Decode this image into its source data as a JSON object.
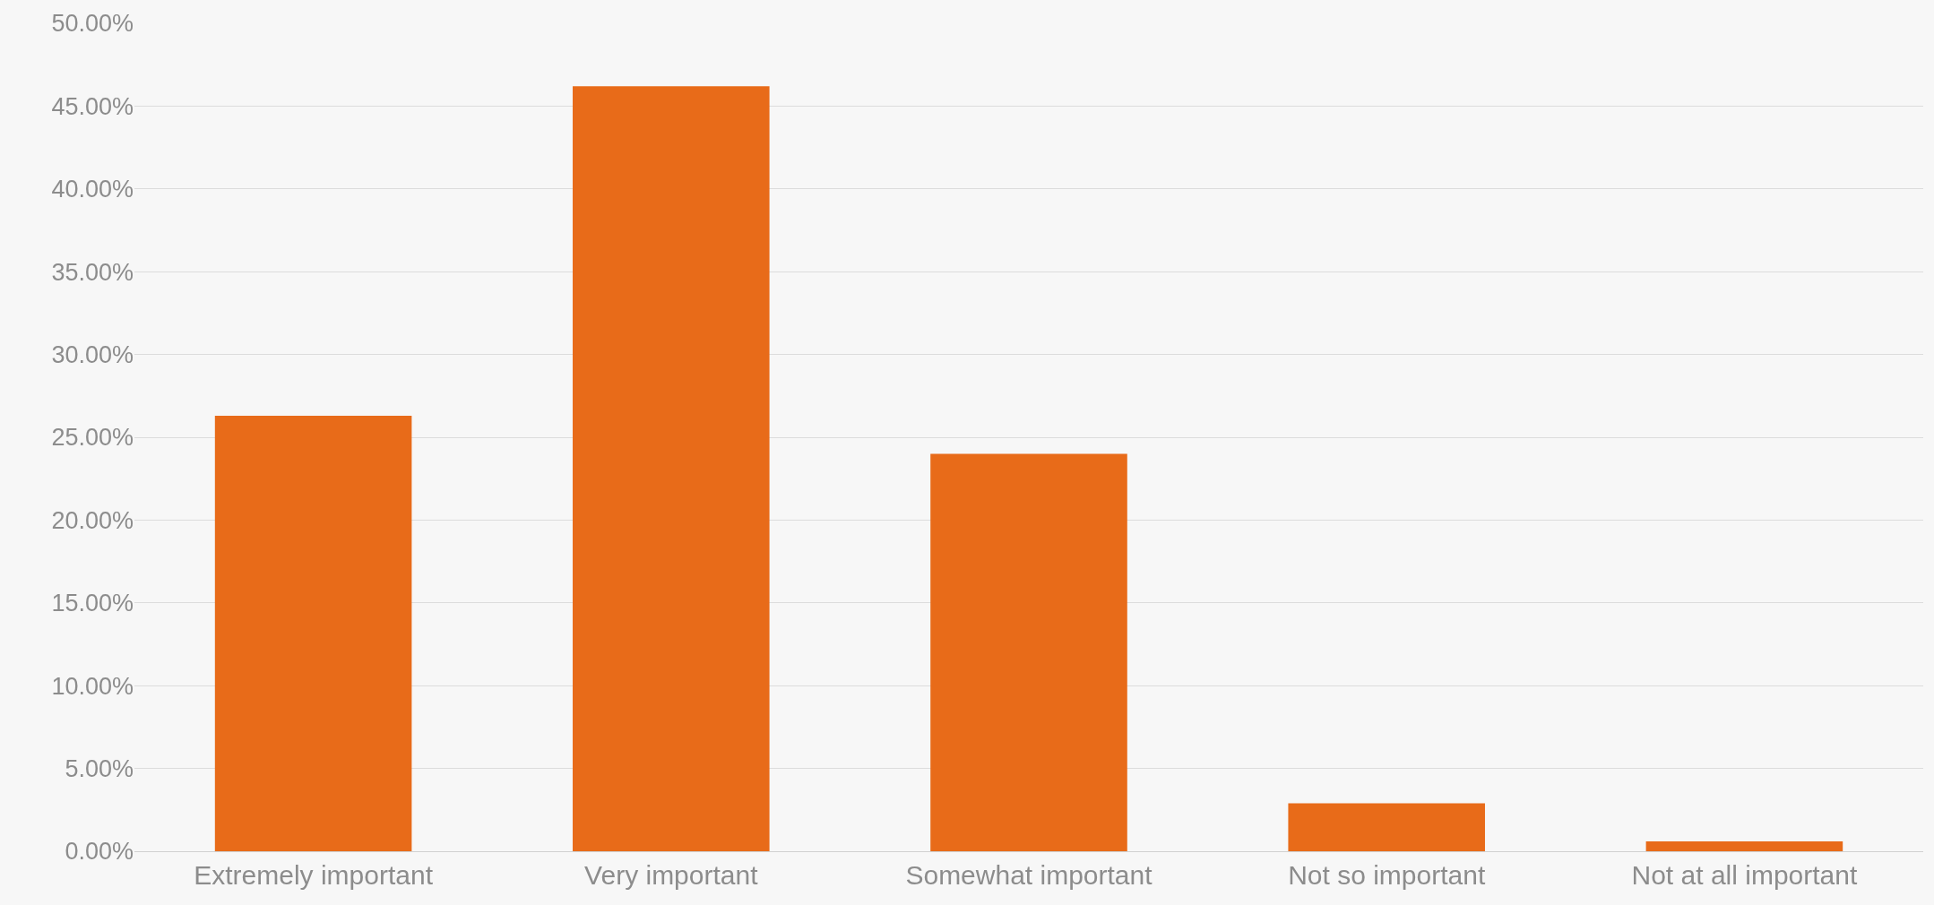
{
  "chart_data": {
    "type": "bar",
    "categories": [
      "Extremely important",
      "Very important",
      "Somewhat important",
      "Not so important",
      "Not at all important"
    ],
    "values": [
      26.3,
      46.2,
      24.0,
      2.9,
      0.6
    ],
    "color": "#e86b19",
    "ylim": [
      0,
      50
    ],
    "yticks": [
      {
        "value": 0,
        "label": "0.00%"
      },
      {
        "value": 5,
        "label": "5.00%"
      },
      {
        "value": 10,
        "label": "10.00%"
      },
      {
        "value": 15,
        "label": "15.00%"
      },
      {
        "value": 20,
        "label": "20.00%"
      },
      {
        "value": 25,
        "label": "25.00%"
      },
      {
        "value": 30,
        "label": "30.00%"
      },
      {
        "value": 35,
        "label": "35.00%"
      },
      {
        "value": 40,
        "label": "40.00%"
      },
      {
        "value": 45,
        "label": "45.00%"
      },
      {
        "value": 50,
        "label": "50.00%"
      }
    ],
    "grid": "y"
  }
}
